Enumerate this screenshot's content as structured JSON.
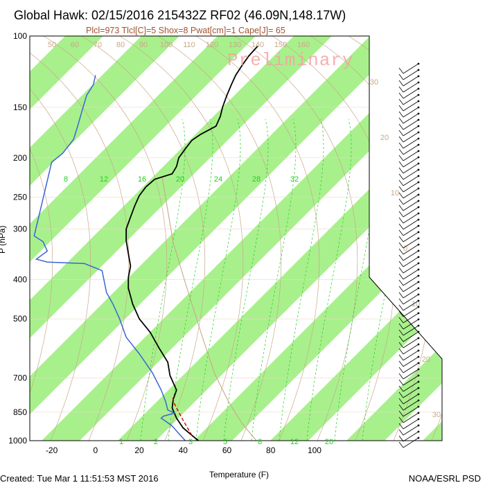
{
  "title": "Global Hawk: 02/15/2016 215432Z RF02 (46.09N,148.17W)",
  "indices": "Plcl=973 Tlcl[C]=5 Shox=8 Pwat[cm]=1 Cape[J]= 65",
  "watermark": "Preliminary",
  "footer_created": "Created: Tue Mar  1 11:51:53 MST 2016",
  "footer_source": "NOAA/ESRL PSD",
  "colors": {
    "temperature": "#000000",
    "dewpoint": "#3a64d8",
    "parcel": "#d00000",
    "isotherm_band": "#a8f08c",
    "dry_adiabat": "#c8a888",
    "mixing_ratio": "#1ecf1e"
  },
  "chart_data": {
    "type": "line",
    "title": "Global Hawk: 02/15/2016 215432Z RF02 (46.09N,148.17W)",
    "xlabel": "Temperature (F)",
    "ylabel": "P (hPa)",
    "xlim": [
      -30,
      125
    ],
    "ylim": [
      1000,
      100
    ],
    "y_scale": "log",
    "x_ticks": [
      -20,
      0,
      20,
      40,
      60,
      80,
      100
    ],
    "y_ticks": [
      100,
      150,
      200,
      250,
      300,
      400,
      500,
      700,
      850,
      1000
    ],
    "mixing_ratio_labels": [
      "8",
      "12",
      "16",
      "20",
      "24",
      "28",
      "32"
    ],
    "mixing_ratio_bottom_labels": [
      "1",
      "2",
      "3",
      "5",
      "8",
      "12",
      "20"
    ],
    "dry_adiabat_top_labels": [
      "50",
      "60",
      "70",
      "80",
      "90",
      "100",
      "110",
      "120",
      "130",
      "140",
      "150",
      "160"
    ],
    "isotherm_right_labels": [
      "30",
      "20",
      "10",
      "0",
      "10",
      "20",
      "30"
    ],
    "series": [
      {
        "name": "Temperature",
        "points": [
          [
            47,
            1000
          ],
          [
            44,
            970
          ],
          [
            40,
            930
          ],
          [
            37,
            880
          ],
          [
            35,
            830
          ],
          [
            35.5,
            790
          ],
          [
            37,
            750
          ],
          [
            34,
            690
          ],
          [
            33,
            640
          ],
          [
            29,
            590
          ],
          [
            25,
            540
          ],
          [
            20,
            500
          ],
          [
            17,
            460
          ],
          [
            15,
            420
          ],
          [
            15,
            395
          ],
          [
            16,
            370
          ],
          [
            15,
            345
          ],
          [
            14,
            320
          ],
          [
            14,
            300
          ],
          [
            16,
            280
          ],
          [
            18,
            262
          ],
          [
            20,
            248
          ],
          [
            23,
            236
          ],
          [
            27,
            226
          ],
          [
            35,
            219
          ],
          [
            37,
            210
          ],
          [
            38,
            200
          ],
          [
            41,
            190
          ],
          [
            44,
            181
          ],
          [
            48,
            175
          ],
          [
            55,
            167
          ],
          [
            57,
            158
          ],
          [
            58,
            150
          ],
          [
            60,
            140
          ],
          [
            62,
            132
          ],
          [
            64,
            125
          ],
          [
            67,
            118
          ],
          [
            70,
            112
          ],
          [
            74,
            106
          ]
        ]
      },
      {
        "name": "Dewpoint",
        "points": [
          [
            41,
            1000
          ],
          [
            38,
            960
          ],
          [
            35,
            920
          ],
          [
            32,
            895
          ],
          [
            30,
            880
          ],
          [
            31,
            870
          ],
          [
            36,
            855
          ],
          [
            33,
            840
          ],
          [
            32,
            800
          ],
          [
            30,
            750
          ],
          [
            26,
            680
          ],
          [
            20,
            610
          ],
          [
            14,
            555
          ],
          [
            11,
            500
          ],
          [
            8,
            460
          ],
          [
            5,
            430
          ],
          [
            3,
            380
          ],
          [
            -5,
            365
          ],
          [
            -22,
            362
          ],
          [
            -27,
            356
          ],
          [
            -22,
            340
          ],
          [
            -24,
            322
          ],
          [
            -28,
            312
          ],
          [
            -20,
            205
          ],
          [
            -15,
            195
          ],
          [
            -10,
            180
          ],
          [
            -8,
            166
          ],
          [
            -6,
            152
          ],
          [
            -4,
            140
          ],
          [
            -1,
            132
          ],
          [
            0,
            125
          ]
        ]
      },
      {
        "name": "Parcel",
        "points": [
          [
            44,
            970
          ],
          [
            42,
            930
          ],
          [
            40,
            890
          ],
          [
            38,
            850
          ],
          [
            36,
            810
          ],
          [
            35,
            775
          ]
        ]
      }
    ],
    "grid": true
  }
}
